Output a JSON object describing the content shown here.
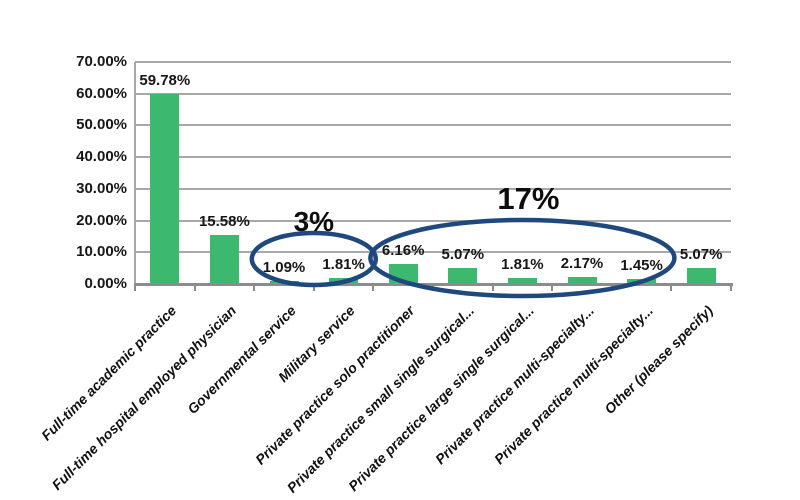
{
  "chart_data": {
    "type": "bar",
    "title": "",
    "xlabel": "",
    "ylabel": "",
    "legend": "none",
    "grid": true,
    "categories": [
      "Full-time academic practice",
      "Full-time hospital employed physician",
      "Governmental service",
      "Military service",
      "Private practice solo practitioner",
      "Private practice small single surgical...",
      "Private practice large single surgical...",
      "Private practice multi-specialty...",
      "Private practice multi-specialty...",
      "Other (please specify)"
    ],
    "values": [
      59.78,
      15.58,
      1.09,
      1.81,
      6.16,
      5.07,
      1.81,
      2.17,
      1.45,
      5.07
    ],
    "value_labels": [
      "59.78%",
      "15.58%",
      "1.09%",
      "1.81%",
      "6.16%",
      "5.07%",
      "1.81%",
      "2.17%",
      "1.45%",
      "5.07%"
    ],
    "y_axis": {
      "min": 0,
      "max": 70,
      "step": 10,
      "ticks": [
        "0.00%",
        "10.00%",
        "20.00%",
        "30.00%",
        "40.00%",
        "50.00%",
        "60.00%",
        "70.00%"
      ]
    },
    "colors": {
      "bar": "#3cb96e",
      "gridline": "#a8a8a8",
      "axis": "#8c8c8c",
      "text": "#161616",
      "annotation_stroke": "#1f497d"
    },
    "annotations": [
      {
        "label": "3%",
        "category_start": 2,
        "category_end": 3
      },
      {
        "label": "17%",
        "category_start": 4,
        "category_end": 8
      }
    ]
  }
}
